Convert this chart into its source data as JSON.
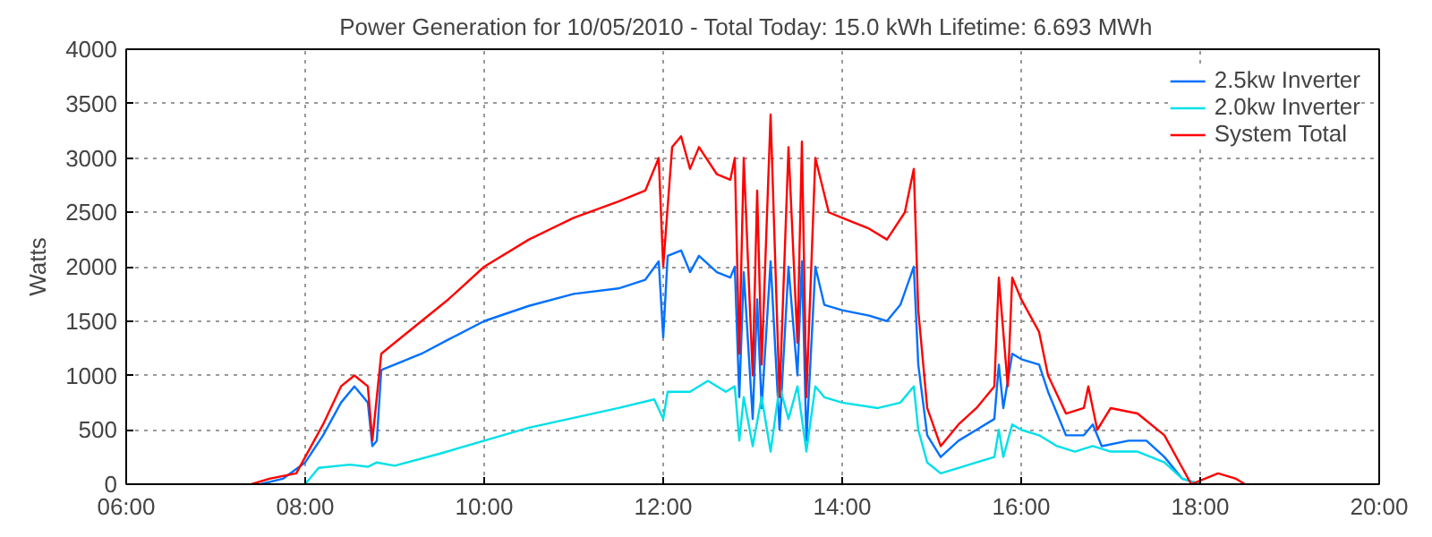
{
  "chart_data": {
    "type": "line",
    "title": "Power Generation for 10/05/2010 - Total Today: 15.0 kWh   Lifetime: 6.693 MWh",
    "ylabel": "Watts",
    "xlim": [
      6,
      20
    ],
    "xticks": [
      {
        "value": 6,
        "label": "06:00"
      },
      {
        "value": 8,
        "label": "08:00"
      },
      {
        "value": 10,
        "label": "10:00"
      },
      {
        "value": 12,
        "label": "12:00"
      },
      {
        "value": 14,
        "label": "14:00"
      },
      {
        "value": 16,
        "label": "16:00"
      },
      {
        "value": 18,
        "label": "18:00"
      },
      {
        "value": 20,
        "label": "20:00"
      }
    ],
    "ylim": [
      0,
      4000
    ],
    "yticks": [
      0,
      500,
      1000,
      1500,
      2000,
      2500,
      3000,
      3500,
      4000
    ],
    "grid": true,
    "legend": "top right",
    "marker": "none",
    "line_style": "solid",
    "series": [
      {
        "name": "2.5kw Inverter",
        "color": "#0070ff",
        "x": [
          7.5,
          7.75,
          8.0,
          8.2,
          8.4,
          8.55,
          8.65,
          8.7,
          8.75,
          8.8,
          8.85,
          9.0,
          9.3,
          9.6,
          10.0,
          10.5,
          11.0,
          11.5,
          11.8,
          11.95,
          12.0,
          12.05,
          12.2,
          12.3,
          12.4,
          12.6,
          12.75,
          12.8,
          12.85,
          12.9,
          13.0,
          13.05,
          13.1,
          13.2,
          13.3,
          13.4,
          13.5,
          13.55,
          13.6,
          13.7,
          13.8,
          14.0,
          14.3,
          14.5,
          14.65,
          14.8,
          14.85,
          14.95,
          15.1,
          15.3,
          15.5,
          15.7,
          15.75,
          15.8,
          15.9,
          16.0,
          16.2,
          16.3,
          16.5,
          16.7,
          16.8,
          16.9,
          17.2,
          17.4,
          17.6,
          17.8,
          18.0
        ],
        "values": [
          0,
          50,
          200,
          450,
          750,
          900,
          800,
          750,
          350,
          400,
          1050,
          1100,
          1200,
          1330,
          1500,
          1640,
          1750,
          1800,
          1880,
          2050,
          1350,
          2100,
          2150,
          1950,
          2100,
          1950,
          1900,
          2000,
          800,
          1950,
          600,
          1700,
          700,
          2050,
          500,
          2000,
          1000,
          2050,
          400,
          2000,
          1650,
          1600,
          1550,
          1500,
          1650,
          2000,
          1100,
          450,
          250,
          400,
          500,
          600,
          1100,
          700,
          1200,
          1150,
          1100,
          850,
          450,
          450,
          550,
          350,
          400,
          400,
          250,
          50,
          0
        ]
      },
      {
        "name": "2.0kw Inverter",
        "color": "#00e0e8",
        "x": [
          8.0,
          8.15,
          8.5,
          8.7,
          8.8,
          9.0,
          9.5,
          10.0,
          10.5,
          11.0,
          11.5,
          11.9,
          12.0,
          12.05,
          12.3,
          12.5,
          12.7,
          12.8,
          12.85,
          12.9,
          13.0,
          13.1,
          13.2,
          13.3,
          13.4,
          13.5,
          13.6,
          13.7,
          13.8,
          14.0,
          14.4,
          14.65,
          14.8,
          14.85,
          14.95,
          15.1,
          15.3,
          15.5,
          15.7,
          15.75,
          15.8,
          15.9,
          16.0,
          16.2,
          16.4,
          16.6,
          16.8,
          17.0,
          17.3,
          17.6,
          17.8,
          18.0
        ],
        "values": [
          0,
          150,
          180,
          160,
          200,
          170,
          280,
          400,
          520,
          610,
          700,
          780,
          600,
          850,
          850,
          950,
          850,
          900,
          400,
          800,
          350,
          800,
          300,
          900,
          600,
          900,
          300,
          900,
          800,
          750,
          700,
          750,
          900,
          500,
          200,
          100,
          150,
          200,
          250,
          500,
          250,
          550,
          500,
          450,
          350,
          300,
          350,
          300,
          300,
          200,
          50,
          0
        ]
      },
      {
        "name": "System Total",
        "color": "#ff0000",
        "x": [
          7.4,
          7.6,
          7.9,
          8.0,
          8.2,
          8.4,
          8.55,
          8.7,
          8.75,
          8.85,
          9.0,
          9.3,
          9.6,
          10.0,
          10.5,
          11.0,
          11.5,
          11.8,
          11.95,
          12.0,
          12.1,
          12.2,
          12.3,
          12.4,
          12.6,
          12.75,
          12.8,
          12.85,
          12.9,
          13.0,
          13.05,
          13.1,
          13.2,
          13.3,
          13.4,
          13.5,
          13.55,
          13.6,
          13.7,
          13.85,
          14.0,
          14.3,
          14.5,
          14.7,
          14.8,
          14.85,
          14.95,
          15.1,
          15.3,
          15.5,
          15.7,
          15.75,
          15.85,
          15.9,
          16.0,
          16.2,
          16.3,
          16.5,
          16.7,
          16.75,
          16.85,
          17.0,
          17.3,
          17.6,
          17.8,
          17.9,
          18.2,
          18.4,
          18.5
        ],
        "values": [
          0,
          50,
          100,
          250,
          550,
          900,
          1000,
          900,
          400,
          1200,
          1300,
          1500,
          1700,
          2000,
          2250,
          2450,
          2600,
          2700,
          3000,
          2000,
          3100,
          3200,
          2900,
          3100,
          2850,
          2800,
          3000,
          1200,
          3000,
          1000,
          2700,
          1100,
          3400,
          800,
          3100,
          1300,
          3150,
          800,
          3000,
          2500,
          2450,
          2350,
          2250,
          2500,
          2900,
          1600,
          700,
          350,
          550,
          700,
          900,
          1900,
          900,
          1900,
          1700,
          1400,
          1000,
          650,
          700,
          900,
          500,
          700,
          650,
          450,
          150,
          0,
          100,
          50,
          0
        ]
      }
    ]
  }
}
